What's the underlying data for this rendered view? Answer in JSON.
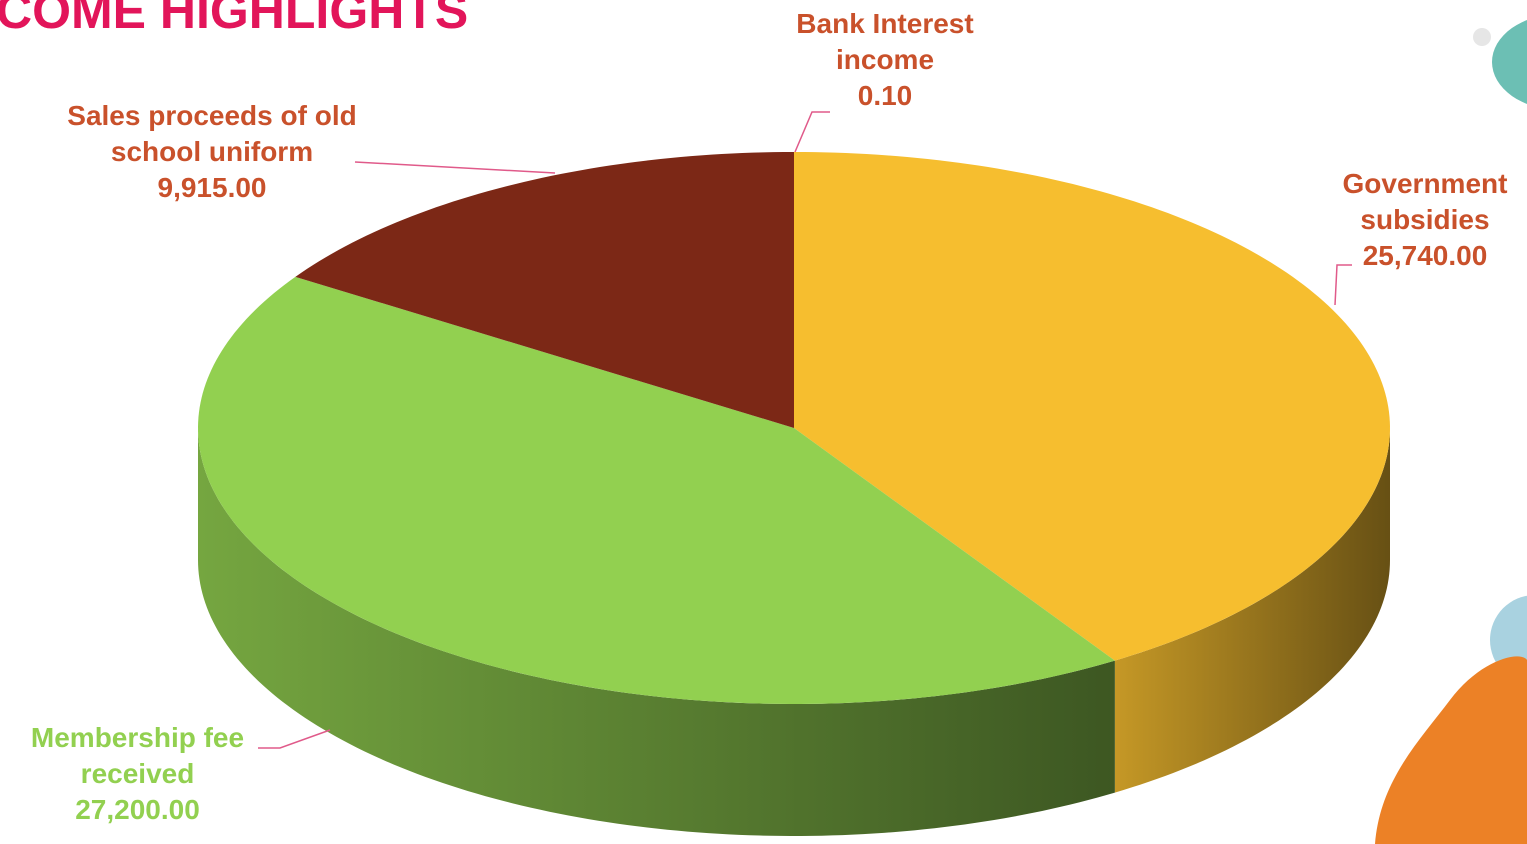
{
  "chart_data": {
    "type": "pie3d",
    "title": "COME HIGHLIGHTS",
    "categories": [
      "Bank Interest income",
      "Government subsidies",
      "Membership fee received",
      "Sales proceeds of old school uniform"
    ],
    "values": [
      0.1,
      25740,
      27200,
      9915
    ],
    "value_labels": [
      "0.10",
      "25,740.00",
      "27,200.00",
      "9,915.00"
    ],
    "colors": [
      "#4472c4",
      "#f6be2f",
      "#92d050",
      "#7c2816"
    ],
    "label_colors": [
      "#c9512b",
      "#c9512b",
      "#92d050",
      "#c9512b"
    ],
    "title_color": "#e2155a"
  }
}
